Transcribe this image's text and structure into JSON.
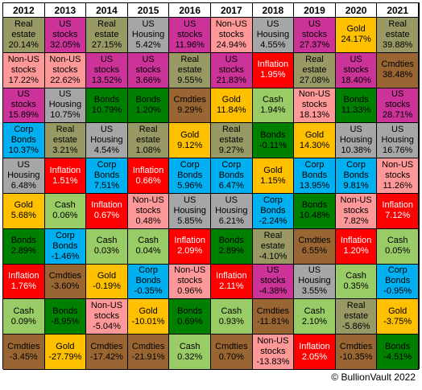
{
  "chart_data": {
    "type": "table",
    "years": [
      "2012",
      "2013",
      "2014",
      "2015",
      "2016",
      "2017",
      "2018",
      "2019",
      "2020",
      "2021"
    ],
    "assets": {
      "Real estate": {
        "label": [
          "Real",
          "estate"
        ],
        "color": "#999966",
        "text": "#000000"
      },
      "US stocks": {
        "label": [
          "US",
          "stocks"
        ],
        "color": "#cc3399",
        "text": "#000000"
      },
      "Non-US stocks": {
        "label": [
          "Non-US",
          "stocks"
        ],
        "color": "#ff9999",
        "text": "#000000"
      },
      "US Housing": {
        "label": [
          "US",
          "Housing"
        ],
        "color": "#a6a6a6",
        "text": "#000000"
      },
      "Gold": {
        "label": [
          "Gold"
        ],
        "color": "#ffc000",
        "text": "#000000"
      },
      "Inflation": {
        "label": [
          "Inflation"
        ],
        "color": "#ff0000",
        "text": "#ffffff"
      },
      "Cmdties": {
        "label": [
          "Cmdties"
        ],
        "color": "#996633",
        "text": "#000000"
      },
      "Bonds": {
        "label": [
          "Bonds"
        ],
        "color": "#008000",
        "text": "#000000"
      },
      "Cash": {
        "label": [
          "Cash"
        ],
        "color": "#99cc66",
        "text": "#000000"
      },
      "Corp Bonds": {
        "label": [
          "Corp",
          "Bonds"
        ],
        "color": "#00b0f0",
        "text": "#000000"
      }
    },
    "columns": [
      [
        [
          "Real estate",
          "20.14%"
        ],
        [
          "Non-US stocks",
          "17.22%"
        ],
        [
          "US stocks",
          "15.89%"
        ],
        [
          "Corp Bonds",
          "10.37%"
        ],
        [
          "US Housing",
          "6.48%"
        ],
        [
          "Gold",
          "5.68%"
        ],
        [
          "Bonds",
          "2.89%"
        ],
        [
          "Inflation",
          "1.76%"
        ],
        [
          "Cash",
          "0.09%"
        ],
        [
          "Cmdties",
          "-3.45%"
        ]
      ],
      [
        [
          "US stocks",
          "32.05%"
        ],
        [
          "Non-US stocks",
          "22.62%"
        ],
        [
          "US Housing",
          "10.75%"
        ],
        [
          "Real estate",
          "3.21%"
        ],
        [
          "Inflation",
          "1.51%"
        ],
        [
          "Cash",
          "0.06%"
        ],
        [
          "Corp Bonds",
          "-1.46%"
        ],
        [
          "Cmdties",
          "-3.60%"
        ],
        [
          "Bonds",
          "-8.95%"
        ],
        [
          "Gold",
          "-27.79%"
        ]
      ],
      [
        [
          "Real estate",
          "27.15%"
        ],
        [
          "US stocks",
          "13.52%"
        ],
        [
          "Bonds",
          "10.79%"
        ],
        [
          "US Housing",
          "4.54%"
        ],
        [
          "Corp Bonds",
          "7.51%"
        ],
        [
          "Inflation",
          "0.67%"
        ],
        [
          "Cash",
          "0.03%"
        ],
        [
          "Gold",
          "-0.19%"
        ],
        [
          "Non-US stocks",
          "-5.04%"
        ],
        [
          "Cmdties",
          "-17.42%"
        ]
      ],
      [
        [
          "US Housing",
          "5.42%"
        ],
        [
          "US stocks",
          "3.66%"
        ],
        [
          "Bonds",
          "1.20%"
        ],
        [
          "Real estate",
          "1.08%"
        ],
        [
          "Inflation",
          "0.66%"
        ],
        [
          "Non-US stocks",
          "0.48%"
        ],
        [
          "Cash",
          "0.04%"
        ],
        [
          "Corp Bonds",
          "-0.35%"
        ],
        [
          "Gold",
          "-10.01%"
        ],
        [
          "Cmdties",
          "-21.91%"
        ]
      ],
      [
        [
          "US stocks",
          "11.96%"
        ],
        [
          "Real estate",
          "9.55%"
        ],
        [
          "Cmdties",
          "9.29%"
        ],
        [
          "Gold",
          "9.12%"
        ],
        [
          "Corp Bonds",
          "5.96%"
        ],
        [
          "US Housing",
          "5.85%"
        ],
        [
          "Inflation",
          "2.09%"
        ],
        [
          "Non-US stocks",
          "0.96%"
        ],
        [
          "Bonds",
          "0.69%"
        ],
        [
          "Cash",
          "0.32%"
        ]
      ],
      [
        [
          "Non-US stocks",
          "24.94%"
        ],
        [
          "US stocks",
          "21.83%"
        ],
        [
          "Gold",
          "11.84%"
        ],
        [
          "Real estate",
          "9.27%"
        ],
        [
          "Corp Bonds",
          "6.47%"
        ],
        [
          "US Housing",
          "6.21%"
        ],
        [
          "Bonds",
          "2.89%"
        ],
        [
          "Inflation",
          "2.11%"
        ],
        [
          "Cash",
          "0.93%"
        ],
        [
          "Cmdties",
          "0.70%"
        ]
      ],
      [
        [
          "US Housing",
          "4.55%"
        ],
        [
          "Inflation",
          "1.95%"
        ],
        [
          "Cash",
          "1.94%"
        ],
        [
          "Bonds",
          "-0.11%"
        ],
        [
          "Gold",
          "1.15%"
        ],
        [
          "Corp Bonds",
          "-2.24%"
        ],
        [
          "Real estate",
          "-4.10%"
        ],
        [
          "US stocks",
          "-4.38%"
        ],
        [
          "Cmdties",
          "-11.81%"
        ],
        [
          "Non-US stocks",
          "-13.83%"
        ]
      ],
      [
        [
          "US stocks",
          "27.37%"
        ],
        [
          "Real estate",
          "27.08%"
        ],
        [
          "Non-US stocks",
          "18.13%"
        ],
        [
          "Gold",
          "14.30%"
        ],
        [
          "Corp Bonds",
          "13.95%"
        ],
        [
          "Bonds",
          "10.48%"
        ],
        [
          "Cmdties",
          "6.55%"
        ],
        [
          "US Housing",
          "3.55%"
        ],
        [
          "Cash",
          "2.10%"
        ],
        [
          "Inflation",
          "2.05%"
        ]
      ],
      [
        [
          "Gold",
          "24.17%"
        ],
        [
          "US stocks",
          "18.40%"
        ],
        [
          "Bonds",
          "11.33%"
        ],
        [
          "US Housing",
          "10.38%"
        ],
        [
          "Corp Bonds",
          "9.81%"
        ],
        [
          "Non-US stocks",
          "7.82%"
        ],
        [
          "Inflation",
          "1.20%"
        ],
        [
          "Cash",
          "0.35%"
        ],
        [
          "Real estate",
          "-5.86%"
        ],
        [
          "Cmdties",
          "-10.35%"
        ]
      ],
      [
        [
          "Real estate",
          "39.88%"
        ],
        [
          "Cmdties",
          "38.48%"
        ],
        [
          "US stocks",
          "28.71%"
        ],
        [
          "US Housing",
          "16.76%"
        ],
        [
          "Non-US stocks",
          "11.26%"
        ],
        [
          "Inflation",
          "7.12%"
        ],
        [
          "Cash",
          "0.05%"
        ],
        [
          "Corp Bonds",
          "-0.95%"
        ],
        [
          "Gold",
          "-3.75%"
        ],
        [
          "Bonds",
          "-4.51%"
        ]
      ]
    ]
  },
  "footer": "© BullionVault 2022"
}
